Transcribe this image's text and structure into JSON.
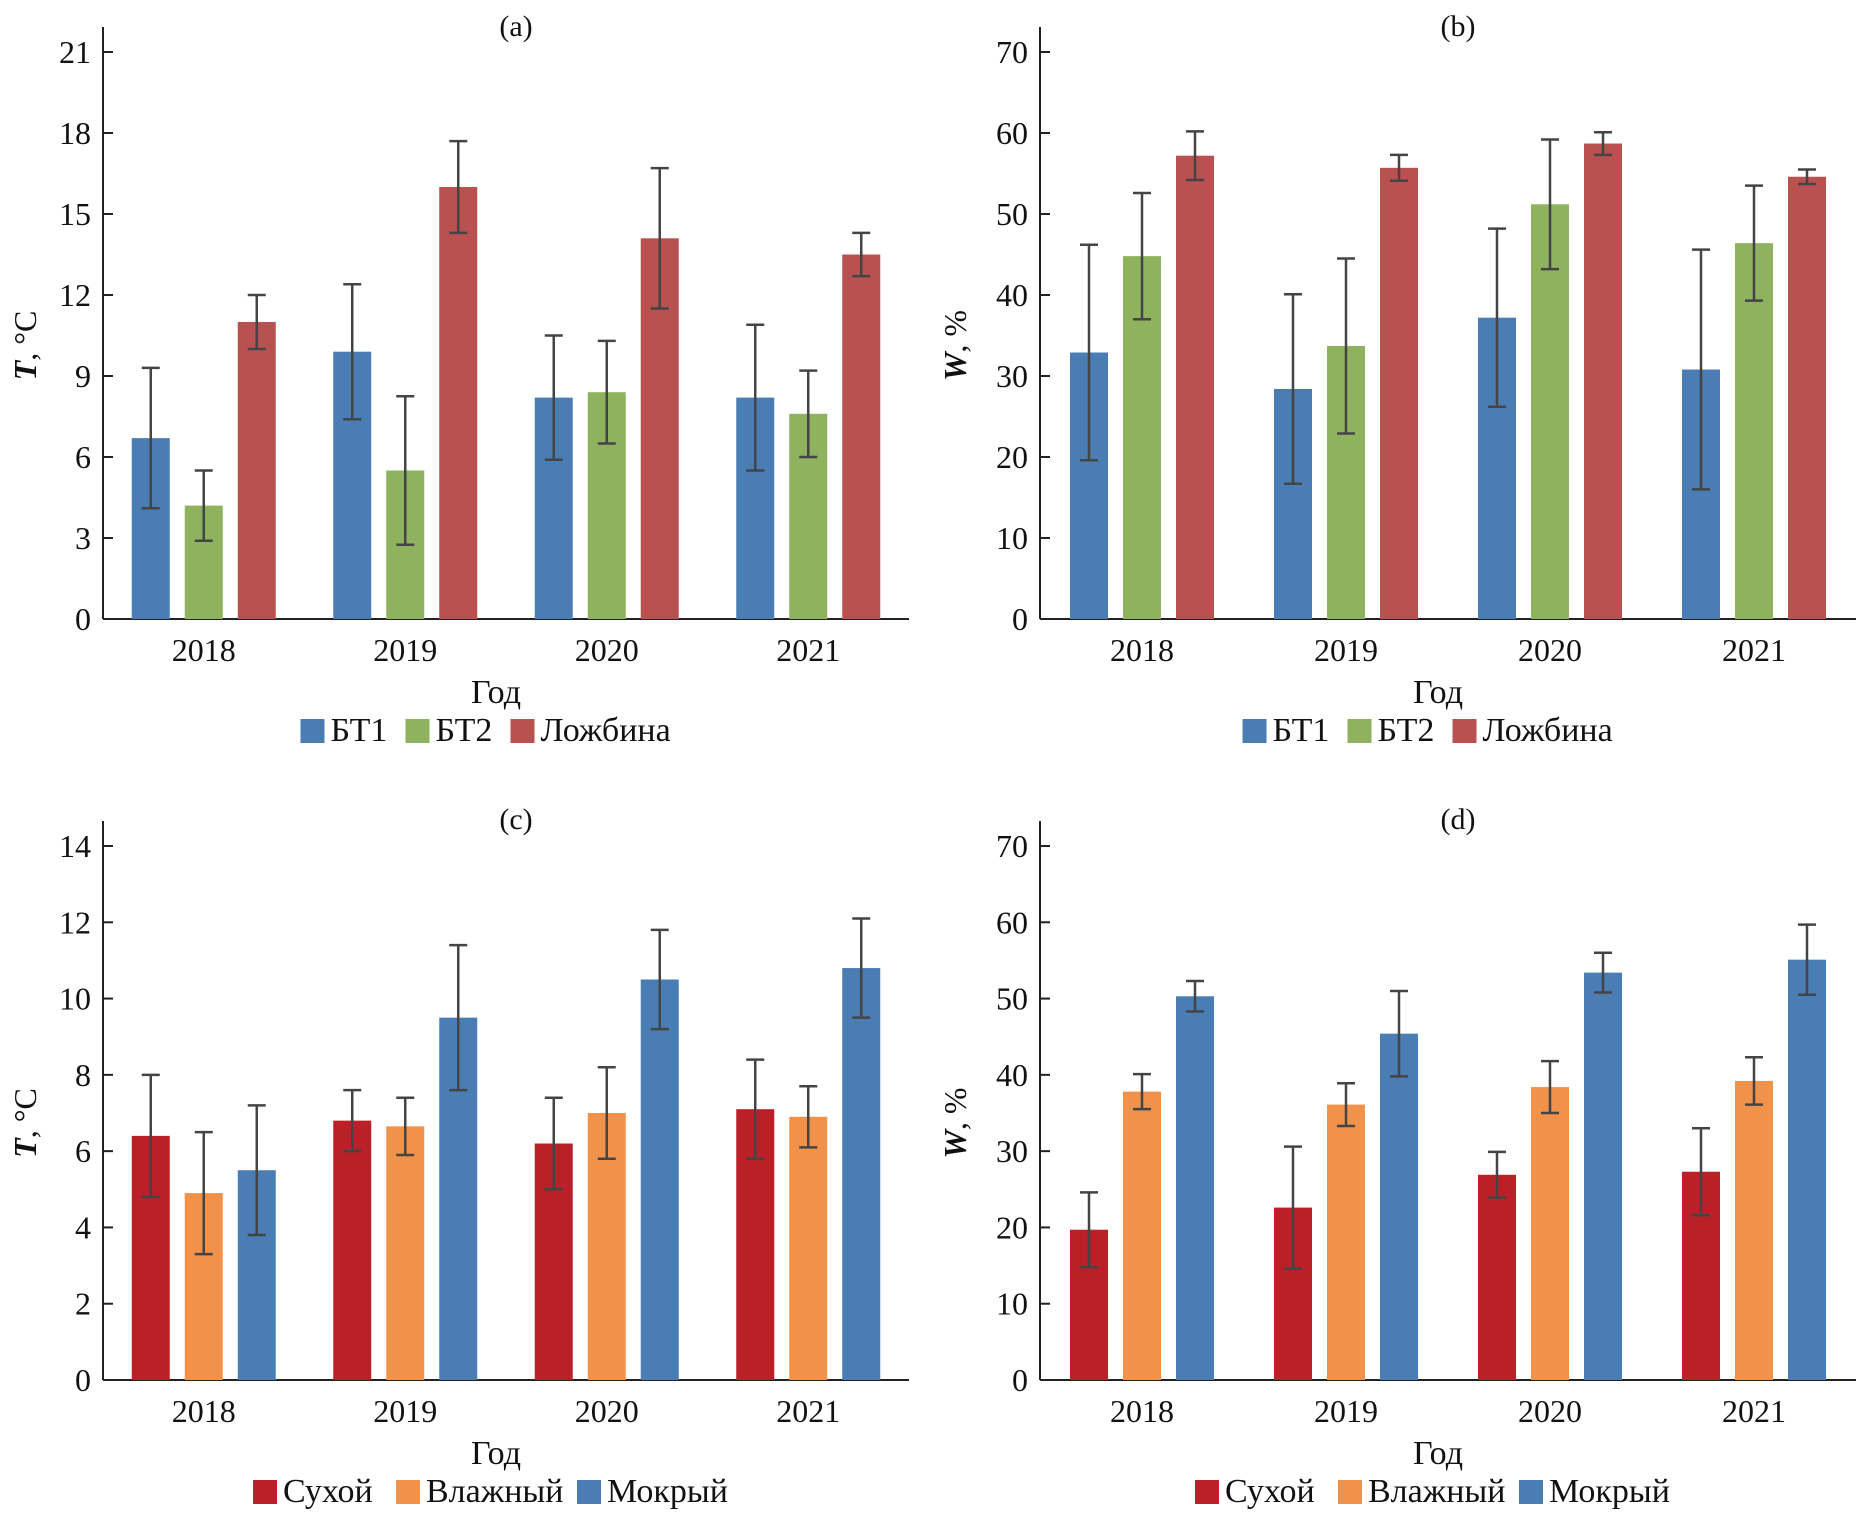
{
  "chart_data": [
    {
      "type": "bar",
      "panel_label": "(a)",
      "xlabel": "Год",
      "ylabel_var": "T",
      "ylabel_unit": ", °C",
      "categories": [
        "2018",
        "2019",
        "2020",
        "2021"
      ],
      "ylim": [
        0,
        21
      ],
      "yticks": [
        0,
        3,
        6,
        9,
        12,
        15,
        18,
        21
      ],
      "legend_position": "bottom",
      "series": [
        {
          "name": "БТ1",
          "color": "#4a7db4",
          "values": [
            6.7,
            9.9,
            8.2,
            8.2
          ],
          "errors": [
            2.6,
            2.5,
            2.3,
            2.7
          ]
        },
        {
          "name": "БТ2",
          "color": "#8fb25e",
          "values": [
            4.2,
            5.5,
            8.4,
            7.6
          ],
          "errors": [
            1.3,
            2.75,
            1.9,
            1.6
          ]
        },
        {
          "name": "Ложбина",
          "color": "#b85150",
          "values": [
            11.0,
            16.0,
            14.1,
            13.5
          ],
          "errors": [
            1.0,
            1.7,
            2.6,
            0.8
          ]
        }
      ]
    },
    {
      "type": "bar",
      "panel_label": "(b)",
      "xlabel": "Год",
      "ylabel_var": "W",
      "ylabel_unit": ", %",
      "categories": [
        "2018",
        "2019",
        "2020",
        "2021"
      ],
      "ylim": [
        0,
        70
      ],
      "yticks": [
        0,
        10,
        20,
        30,
        40,
        50,
        60,
        70
      ],
      "legend_position": "bottom",
      "series": [
        {
          "name": "БТ1",
          "color": "#4a7db4",
          "values": [
            32.9,
            28.4,
            37.2,
            30.8
          ],
          "errors": [
            13.3,
            11.7,
            11.0,
            14.8
          ]
        },
        {
          "name": "БТ2",
          "color": "#8fb25e",
          "values": [
            44.8,
            33.7,
            51.2,
            46.4
          ],
          "errors": [
            7.8,
            10.8,
            8.0,
            7.1
          ]
        },
        {
          "name": "Ложбина",
          "color": "#b85150",
          "values": [
            57.2,
            55.7,
            58.7,
            54.6
          ],
          "errors": [
            3.0,
            1.6,
            1.4,
            0.9
          ]
        }
      ]
    },
    {
      "type": "bar",
      "panel_label": "(c)",
      "xlabel": "Год",
      "ylabel_var": "T",
      "ylabel_unit": ", °C",
      "categories": [
        "2018",
        "2019",
        "2020",
        "2021"
      ],
      "ylim": [
        0,
        14
      ],
      "yticks": [
        0,
        2,
        4,
        6,
        8,
        10,
        12,
        14
      ],
      "legend_position": "bottom",
      "series": [
        {
          "name": "Сухой",
          "color": "#bb2028",
          "values": [
            6.4,
            6.8,
            6.2,
            7.1
          ],
          "errors": [
            1.6,
            0.8,
            1.2,
            1.3
          ]
        },
        {
          "name": "Влажный",
          "color": "#f0924a",
          "values": [
            4.9,
            6.65,
            7.0,
            6.9
          ],
          "errors": [
            1.6,
            0.75,
            1.2,
            0.8
          ]
        },
        {
          "name": "Мокрый",
          "color": "#4a7db4",
          "values": [
            5.5,
            9.5,
            10.5,
            10.8
          ],
          "errors": [
            1.7,
            1.9,
            1.3,
            1.3
          ]
        }
      ]
    },
    {
      "type": "bar",
      "panel_label": "(d)",
      "xlabel": "Год",
      "ylabel_var": "W",
      "ylabel_unit": ", %",
      "categories": [
        "2018",
        "2019",
        "2020",
        "2021"
      ],
      "ylim": [
        0,
        70
      ],
      "yticks": [
        0,
        10,
        20,
        30,
        40,
        50,
        60,
        70
      ],
      "legend_position": "bottom",
      "series": [
        {
          "name": "Сухой",
          "color": "#bb2028",
          "values": [
            19.7,
            22.6,
            26.9,
            27.3
          ],
          "errors": [
            4.9,
            8.0,
            3.0,
            5.7
          ]
        },
        {
          "name": "Влажный",
          "color": "#f0924a",
          "values": [
            37.8,
            36.1,
            38.4,
            39.2
          ],
          "errors": [
            2.3,
            2.8,
            3.4,
            3.1
          ]
        },
        {
          "name": "Мокрый",
          "color": "#4a7db4",
          "values": [
            50.3,
            45.4,
            53.4,
            55.1
          ],
          "errors": [
            2.0,
            5.6,
            2.6,
            4.6
          ]
        }
      ]
    }
  ]
}
